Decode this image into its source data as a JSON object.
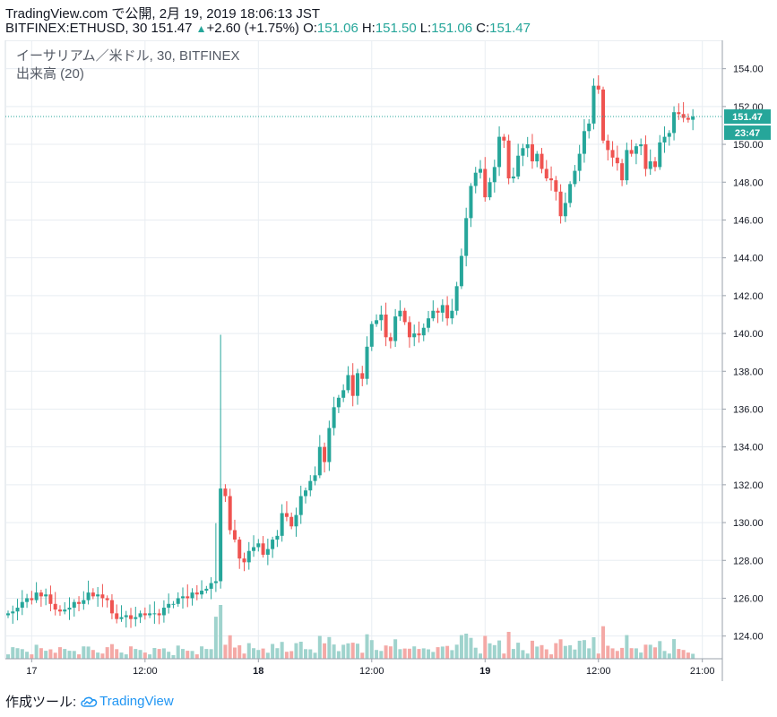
{
  "header": {
    "line1": "TradingView.com で公開, 2月 19, 2019 18:06:13 JST",
    "symbol_line": "BITFINEX:ETHUSD, 30",
    "last": "151.47",
    "change_arrow": "▲",
    "change": "+2.60 (+1.75%)",
    "o_label": "O:",
    "o_value": "151.06",
    "h_label": "H:",
    "h_value": "151.50",
    "l_label": "L:",
    "l_value": "151.06",
    "c_label": "C:",
    "c_value": "151.47"
  },
  "legend": {
    "series": "イーサリアム／米ドル, 30, BITFINEX",
    "volume": "出来高 (20)"
  },
  "price_badge": "151.47",
  "time_badge": "23:47",
  "footer": {
    "made_with": "作成ツール:",
    "brand": "TradingView",
    "brand_icon": "tradingview-cloud-icon"
  },
  "colors": {
    "up": "#26a69a",
    "down": "#ef5350",
    "vol_up": "#9fd3cd",
    "vol_down": "#f4a9a6",
    "grid": "#e8edf2"
  },
  "chart_data": {
    "type": "candlestick",
    "interval": "30",
    "y_ticks": [
      "124.00",
      "126.00",
      "128.00",
      "130.00",
      "132.00",
      "134.00",
      "136.00",
      "138.00",
      "140.00",
      "142.00",
      "144.00",
      "146.00",
      "148.00",
      "150.00",
      "152.00",
      "154.00"
    ],
    "x_ticks": [
      "17",
      "12:00",
      "18",
      "12:00",
      "19",
      "12:00",
      "21:00"
    ],
    "ylim": [
      122.8,
      155.5
    ],
    "last_price": 151.47,
    "series": [
      {
        "name": "ETHUSD",
        "close": [
          125.2,
          125.3,
          125.5,
          125.8,
          126.0,
          125.9,
          126.3,
          126.1,
          126.2,
          125.7,
          125.4,
          125.3,
          125.4,
          125.5,
          125.8,
          125.7,
          125.9,
          126.3,
          126.1,
          126.2,
          126.0,
          125.9,
          125.2,
          124.9,
          125.0,
          125.1,
          124.9,
          125.0,
          125.2,
          125.1,
          125.2,
          125.2,
          125.1,
          125.5,
          125.7,
          125.7,
          126.0,
          126.1,
          126.0,
          126.3,
          126.2,
          126.4,
          126.5,
          126.8,
          126.9,
          131.8,
          131.4,
          129.6,
          129.1,
          128.1,
          127.9,
          128.5,
          128.7,
          128.9,
          128.3,
          128.6,
          129.1,
          129.3,
          130.5,
          130.3,
          129.8,
          130.4,
          131.4,
          131.7,
          132.2,
          132.5,
          134.0,
          133.2,
          135.0,
          136.1,
          136.6,
          137.0,
          137.8,
          136.7,
          137.9,
          137.6,
          139.3,
          140.5,
          140.7,
          141.0,
          139.8,
          139.6,
          140.9,
          141.2,
          140.6,
          139.8,
          140.0,
          139.9,
          140.3,
          140.8,
          141.2,
          141.1,
          141.5,
          140.8,
          141.2,
          142.5,
          144.1,
          146.1,
          147.8,
          148.5,
          148.7,
          147.2,
          148.0,
          148.8,
          150.4,
          150.2,
          148.2,
          148.3,
          149.4,
          149.8,
          150.0,
          149.1,
          149.5,
          148.7,
          148.2,
          148.1,
          147.5,
          146.2,
          146.9,
          147.9,
          148.6,
          149.5,
          150.7,
          151.1,
          153.1,
          152.9,
          150.2,
          149.7,
          149.3,
          149.0,
          148.1,
          149.7,
          149.5,
          149.9,
          150.0,
          148.7,
          149.1,
          148.8,
          150.1,
          150.4,
          150.6,
          151.7,
          151.6,
          151.4,
          151.3,
          151.47
        ]
      }
    ]
  }
}
